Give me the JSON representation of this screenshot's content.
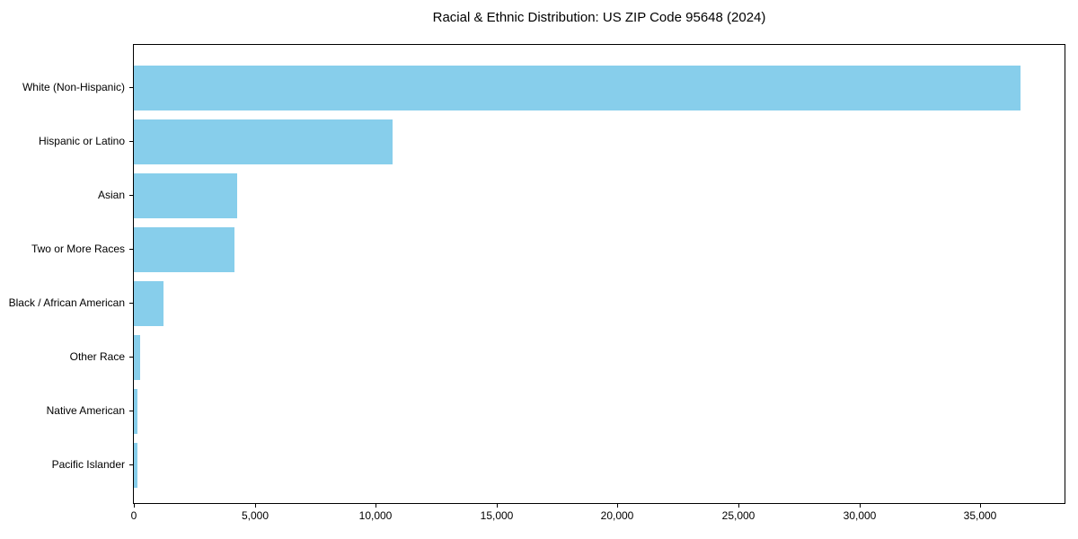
{
  "chart_data": {
    "type": "bar",
    "orientation": "horizontal",
    "title": "Racial & Ethnic Distribution: US ZIP Code 95648 (2024)",
    "categories": [
      "White (Non-Hispanic)",
      "Hispanic or Latino",
      "Asian",
      "Two or More Races",
      "Black / African American",
      "Other Race",
      "Native American",
      "Pacific Islander"
    ],
    "values": [
      36650,
      10700,
      4280,
      4160,
      1210,
      260,
      140,
      130
    ],
    "xlabel": "",
    "ylabel": "",
    "xlim": [
      0,
      38480
    ],
    "xticks": [
      0,
      5000,
      10000,
      15000,
      20000,
      25000,
      30000,
      35000
    ],
    "bar_color": "#87CEEB",
    "text_color": "#000000",
    "grid": false,
    "legend": null,
    "category_order": "descending"
  }
}
